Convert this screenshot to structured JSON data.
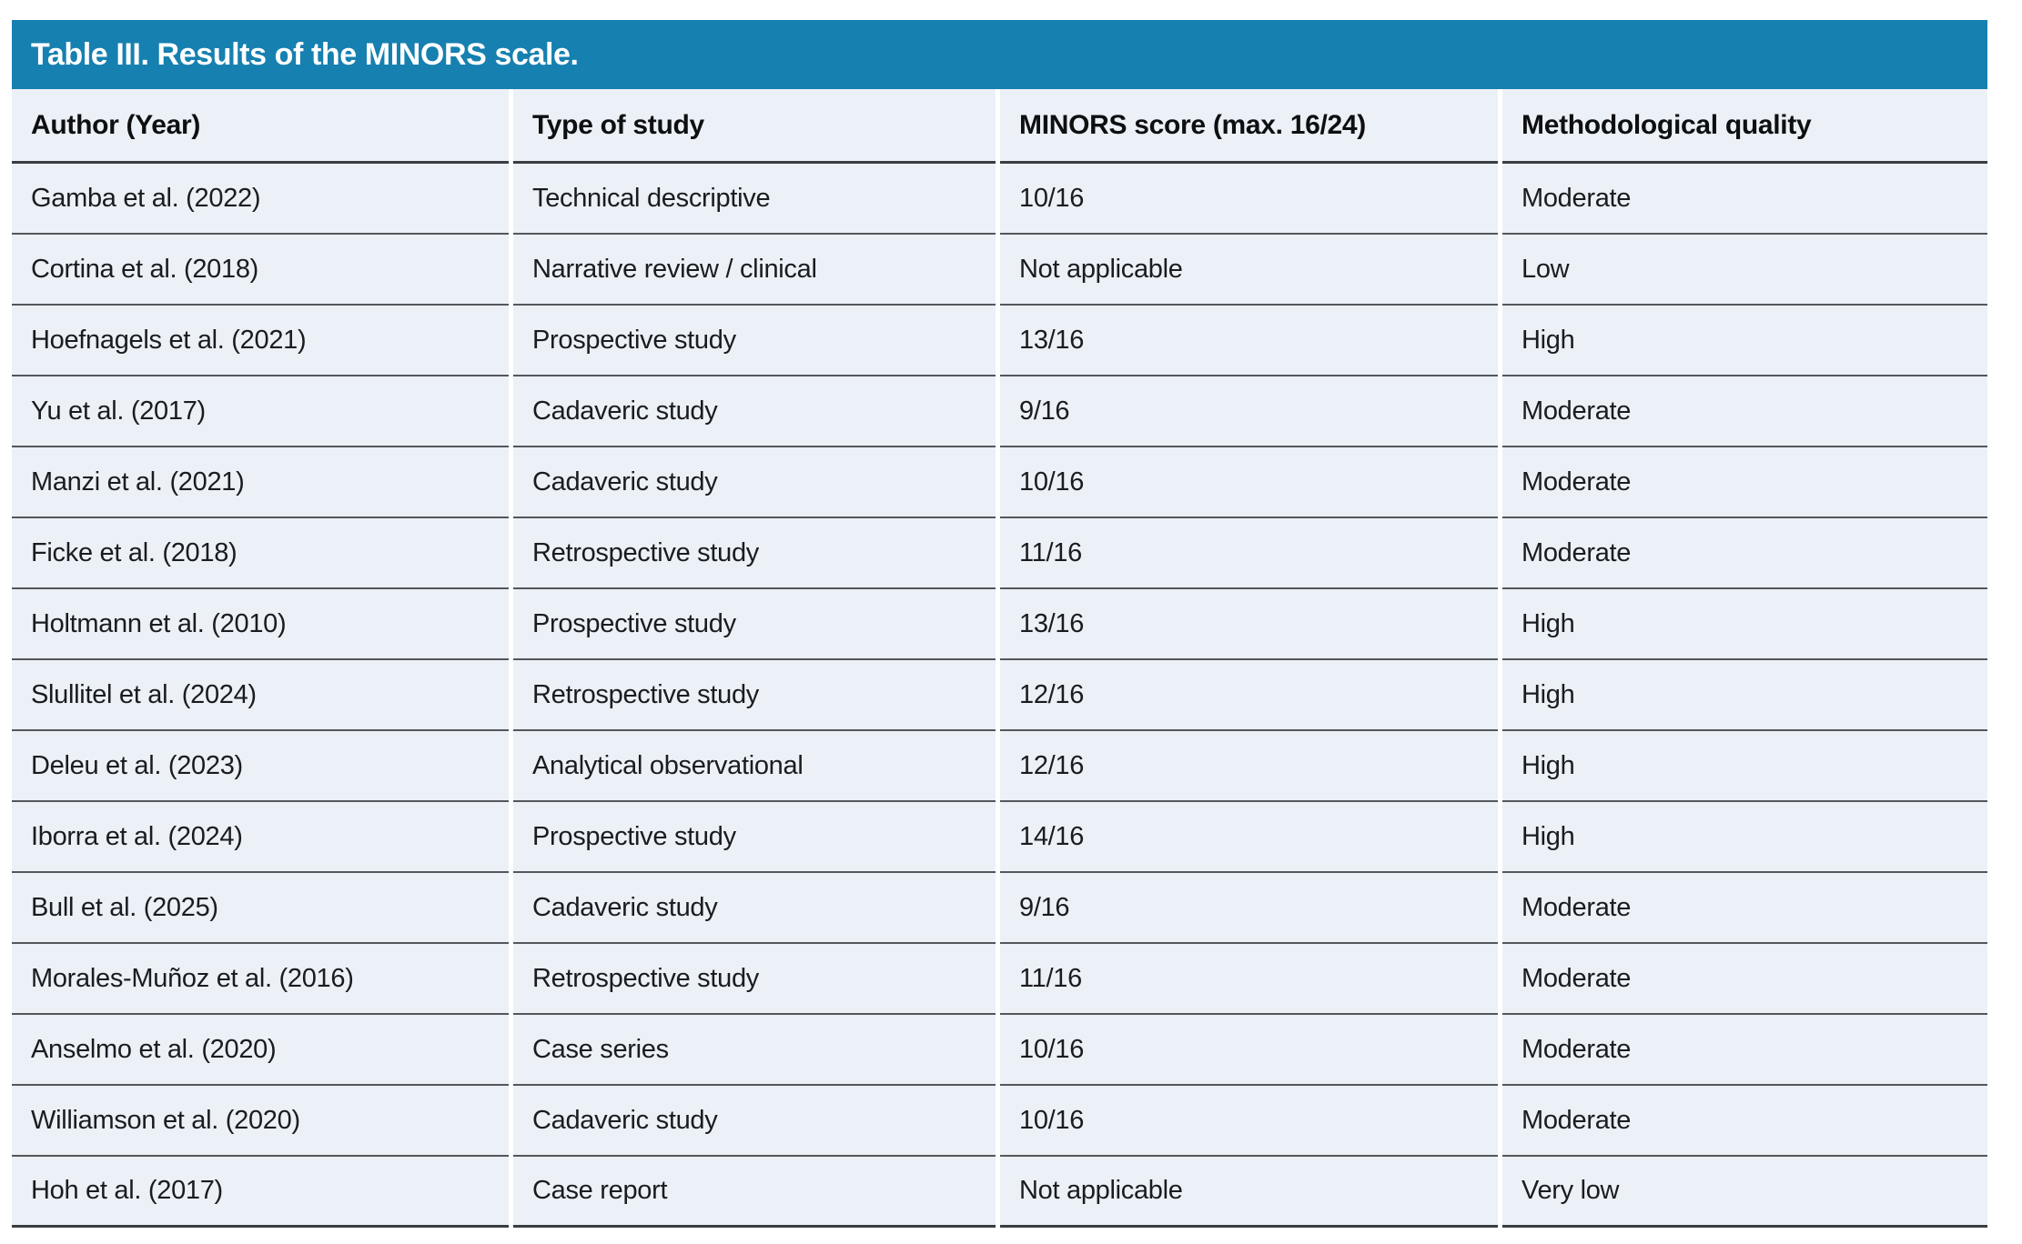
{
  "table": {
    "title": "Table III. Results of the MINORS scale.",
    "columns": [
      "Author (Year)",
      "Type of study",
      "MINORS score (max. 16/24)",
      "Methodological quality"
    ],
    "rows": [
      {
        "author": "Gamba et al. (2022)",
        "study_type": "Technical descriptive",
        "minors_score": "10/16",
        "quality": "Moderate"
      },
      {
        "author": "Cortina et al. (2018)",
        "study_type": "Narrative review / clinical",
        "minors_score": "Not applicable",
        "quality": "Low"
      },
      {
        "author": "Hoefnagels et al. (2021)",
        "study_type": "Prospective study",
        "minors_score": "13/16",
        "quality": "High"
      },
      {
        "author": "Yu et al. (2017)",
        "study_type": "Cadaveric study",
        "minors_score": "9/16",
        "quality": "Moderate"
      },
      {
        "author": "Manzi et al. (2021)",
        "study_type": "Cadaveric study",
        "minors_score": "10/16",
        "quality": "Moderate"
      },
      {
        "author": "Ficke et al. (2018)",
        "study_type": "Retrospective study",
        "minors_score": "11/16",
        "quality": "Moderate"
      },
      {
        "author": "Holtmann et al. (2010)",
        "study_type": "Prospective study",
        "minors_score": "13/16",
        "quality": "High"
      },
      {
        "author": "Slullitel et al. (2024)",
        "study_type": "Retrospective study",
        "minors_score": "12/16",
        "quality": "High"
      },
      {
        "author": "Deleu et al. (2023)",
        "study_type": "Analytical observational",
        "minors_score": "12/16",
        "quality": "High"
      },
      {
        "author": "Iborra et al. (2024)",
        "study_type": "Prospective study",
        "minors_score": "14/16",
        "quality": "High"
      },
      {
        "author": "Bull et al. (2025)",
        "study_type": "Cadaveric study",
        "minors_score": "9/16",
        "quality": "Moderate"
      },
      {
        "author": "Morales-Muñoz et al. (2016)",
        "study_type": "Retrospective study",
        "minors_score": "11/16",
        "quality": "Moderate"
      },
      {
        "author": "Anselmo et al. (2020)",
        "study_type": "Case series",
        "minors_score": "10/16",
        "quality": "Moderate"
      },
      {
        "author": "Williamson et al. (2020)",
        "study_type": "Cadaveric study",
        "minors_score": "10/16",
        "quality": "Moderate"
      },
      {
        "author": "Hoh et al. (2017)",
        "study_type": "Case report",
        "minors_score": "Not applicable",
        "quality": "Very low"
      }
    ]
  },
  "colors": {
    "title_bar_blue": "#1680b0",
    "row_background": "#ecf0f7",
    "divider_gray": "#53575c",
    "header_divider_gray": "#3a3e42",
    "title_text": "#ffffff",
    "body_text": "#1a1c1f"
  }
}
